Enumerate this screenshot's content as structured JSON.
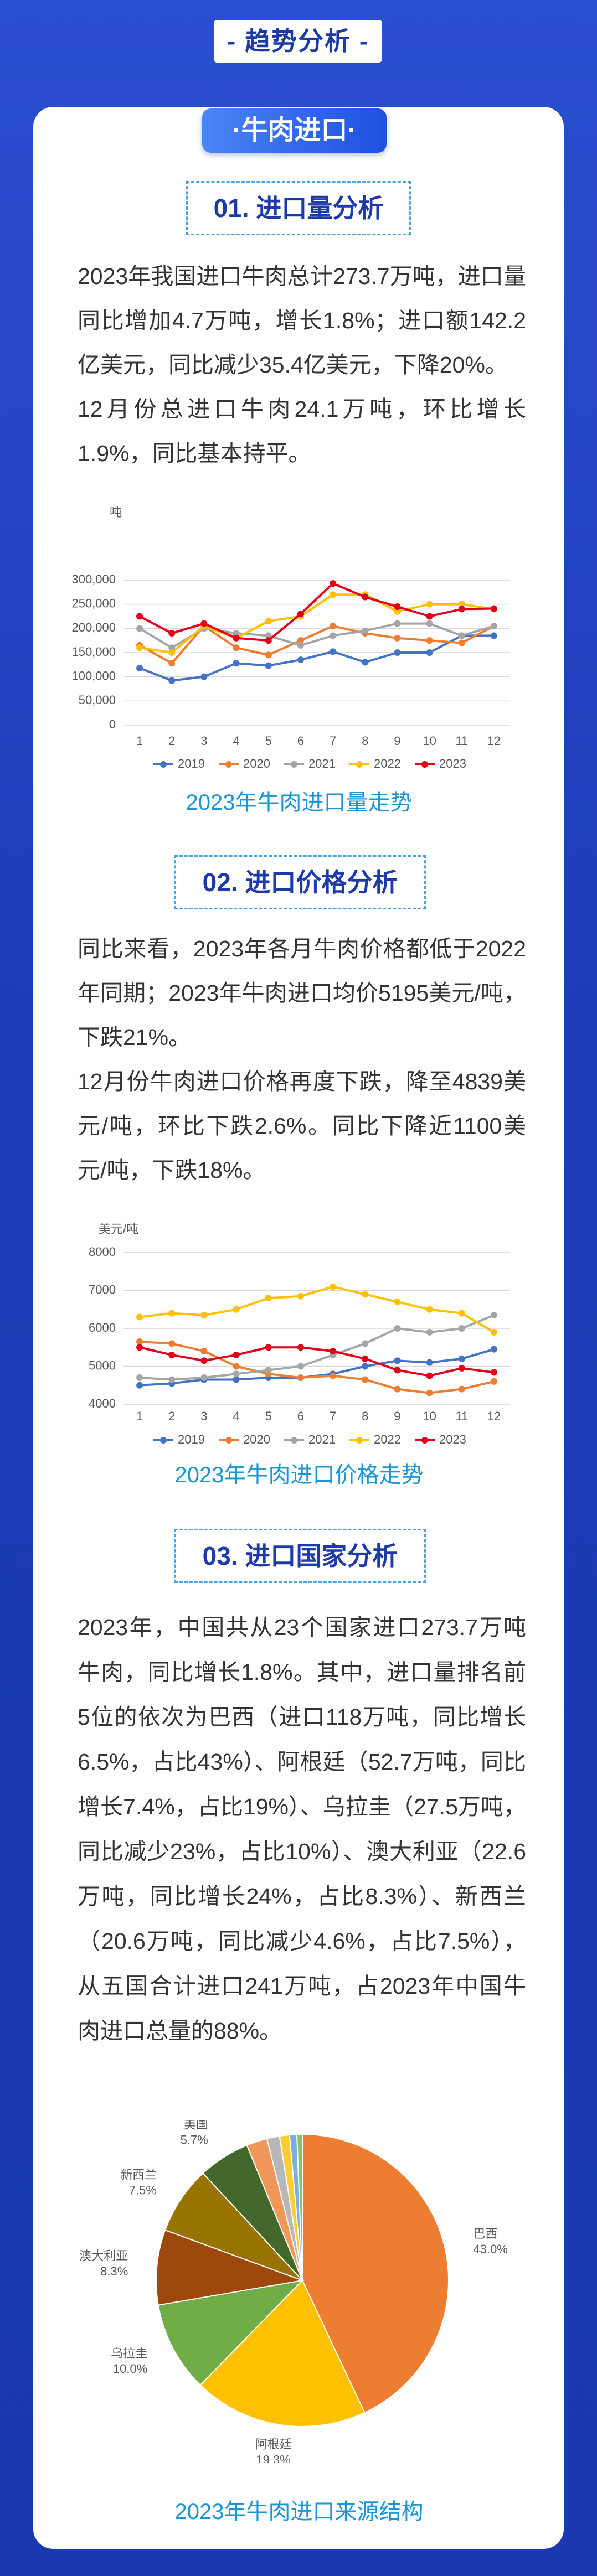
{
  "header": {
    "title": "- 趋势分析 -"
  },
  "tab": "·牛肉进口·",
  "sections": [
    {
      "heading": "01. 进口量分析",
      "paragraphs": [
        "2023年我国进口牛肉总计273.7万吨，进口量同比增加4.7万吨，增长1.8%；进口额142.2亿美元，同比减少35.4亿美元，下降20%。",
        "12月份总进口牛肉24.1万吨，环比增长1.9%，同比基本持平。"
      ]
    },
    {
      "heading": "02. 进口价格分析",
      "paragraphs": [
        "同比来看，2023年各月牛肉价格都低于2022年同期；2023年牛肉进口均价5195美元/吨，下跌21%。",
        "12月份牛肉进口价格再度下跌，降至4839美元/吨，环比下跌2.6%。同比下降近1100美元/吨，下跌18%。"
      ]
    },
    {
      "heading": "03. 进口国家分析",
      "paragraphs": [
        "2023年，中国共从23个国家进口273.7万吨牛肉，同比增长1.8%。其中，进口量排名前5位的依次为巴西（进口118万吨，同比增长6.5%，占比43%）、阿根廷（52.7万吨，同比增长7.4%，占比19%）、乌拉圭（27.5万吨，同比减少23%，占比10%）、澳大利亚（22.6万吨，同比增长24%，占比8.3%）、新西兰（20.6万吨，同比减少4.6%，占比7.5%），从五国合计进口241万吨，占2023年中国牛肉进口总量的88%。"
      ]
    }
  ],
  "chart_data": [
    {
      "type": "line",
      "title": "2023年牛肉进口量走势",
      "ylabel": "吨",
      "categories": [
        "1",
        "2",
        "3",
        "4",
        "5",
        "6",
        "7",
        "8",
        "9",
        "10",
        "11",
        "12"
      ],
      "ylim": [
        0,
        300000
      ],
      "yticks": [
        0,
        {
          "value": 50000,
          "label": "50,000"
        },
        {
          "value": 100000,
          "label": "100,000"
        },
        {
          "value": 150000,
          "label": "150,000"
        },
        {
          "value": 200000,
          "label": "200,000"
        },
        {
          "value": 250000,
          "label": "250,000"
        },
        {
          "value": 300000,
          "label": "300,000"
        }
      ],
      "grid": true,
      "series": [
        {
          "name": "2019",
          "color": "#4472c4",
          "values": [
            118000,
            92000,
            100000,
            128000,
            123000,
            135000,
            152000,
            130000,
            150000,
            150000,
            185000,
            185000
          ]
        },
        {
          "name": "2020",
          "color": "#ed7d31",
          "values": [
            165000,
            128000,
            205000,
            160000,
            145000,
            175000,
            205000,
            190000,
            180000,
            175000,
            170000,
            205000
          ]
        },
        {
          "name": "2021",
          "color": "#a5a5a5",
          "values": [
            200000,
            160000,
            200000,
            190000,
            185000,
            165000,
            185000,
            195000,
            210000,
            210000,
            185000,
            205000
          ]
        },
        {
          "name": "2022",
          "color": "#ffc000",
          "values": [
            160000,
            150000,
            205000,
            180000,
            215000,
            225000,
            270000,
            270000,
            235000,
            250000,
            250000,
            240000
          ]
        },
        {
          "name": "2023",
          "color": "#e3001b",
          "values": [
            225000,
            190000,
            210000,
            180000,
            175000,
            230000,
            293000,
            265000,
            245000,
            225000,
            240000,
            241000
          ]
        }
      ]
    },
    {
      "type": "line",
      "title": "2023年牛肉进口价格走势",
      "ylabel": "美元/吨",
      "categories": [
        "1",
        "2",
        "3",
        "4",
        "5",
        "6",
        "7",
        "8",
        "9",
        "10",
        "11",
        "12"
      ],
      "ylim": [
        4000,
        8000
      ],
      "yticks": [
        4000,
        5000,
        6000,
        7000,
        8000
      ],
      "grid": true,
      "series": [
        {
          "name": "2019",
          "color": "#4472c4",
          "values": [
            4500,
            4550,
            4650,
            4650,
            4700,
            4700,
            4800,
            5000,
            5150,
            5100,
            5200,
            5450
          ]
        },
        {
          "name": "2020",
          "color": "#ed7d31",
          "values": [
            5650,
            5600,
            5400,
            5000,
            4800,
            4700,
            4750,
            4650,
            4400,
            4300,
            4400,
            4600
          ]
        },
        {
          "name": "2021",
          "color": "#a5a5a5",
          "values": [
            4700,
            4650,
            4700,
            4800,
            4900,
            5000,
            5300,
            5600,
            6000,
            5900,
            6000,
            6350
          ]
        },
        {
          "name": "2022",
          "color": "#ffc000",
          "values": [
            6300,
            6400,
            6350,
            6500,
            6800,
            6850,
            7100,
            6900,
            6700,
            6500,
            6400,
            5900
          ]
        },
        {
          "name": "2023",
          "color": "#e3001b",
          "values": [
            5500,
            5300,
            5150,
            5300,
            5500,
            5500,
            5400,
            5200,
            4900,
            4750,
            4950,
            4839
          ]
        }
      ]
    },
    {
      "type": "pie",
      "title": "2023年牛肉进口来源结构",
      "categories": [
        "巴西",
        "阿根廷",
        "乌拉圭",
        "澳大利亚",
        "新西兰",
        "美国",
        null,
        null,
        null,
        null,
        null
      ],
      "values": [
        43.0,
        19.3,
        10.0,
        8.3,
        7.5,
        5.7,
        2.3,
        1.4,
        1.1,
        0.8,
        0.6
      ],
      "value_labels": [
        "43.0%",
        "19.3%",
        "10.0%",
        "8.3%",
        "7.5%",
        "5.7%",
        null,
        null,
        null,
        null,
        null
      ],
      "colors": [
        "#ed7d31",
        "#ffc000",
        "#70ad47",
        "#9e480e",
        "#997300",
        "#43682b",
        "#f1975a",
        "#b7b7b7",
        "#ffcd33",
        "#7cafdd",
        "#8cc168"
      ]
    }
  ]
}
